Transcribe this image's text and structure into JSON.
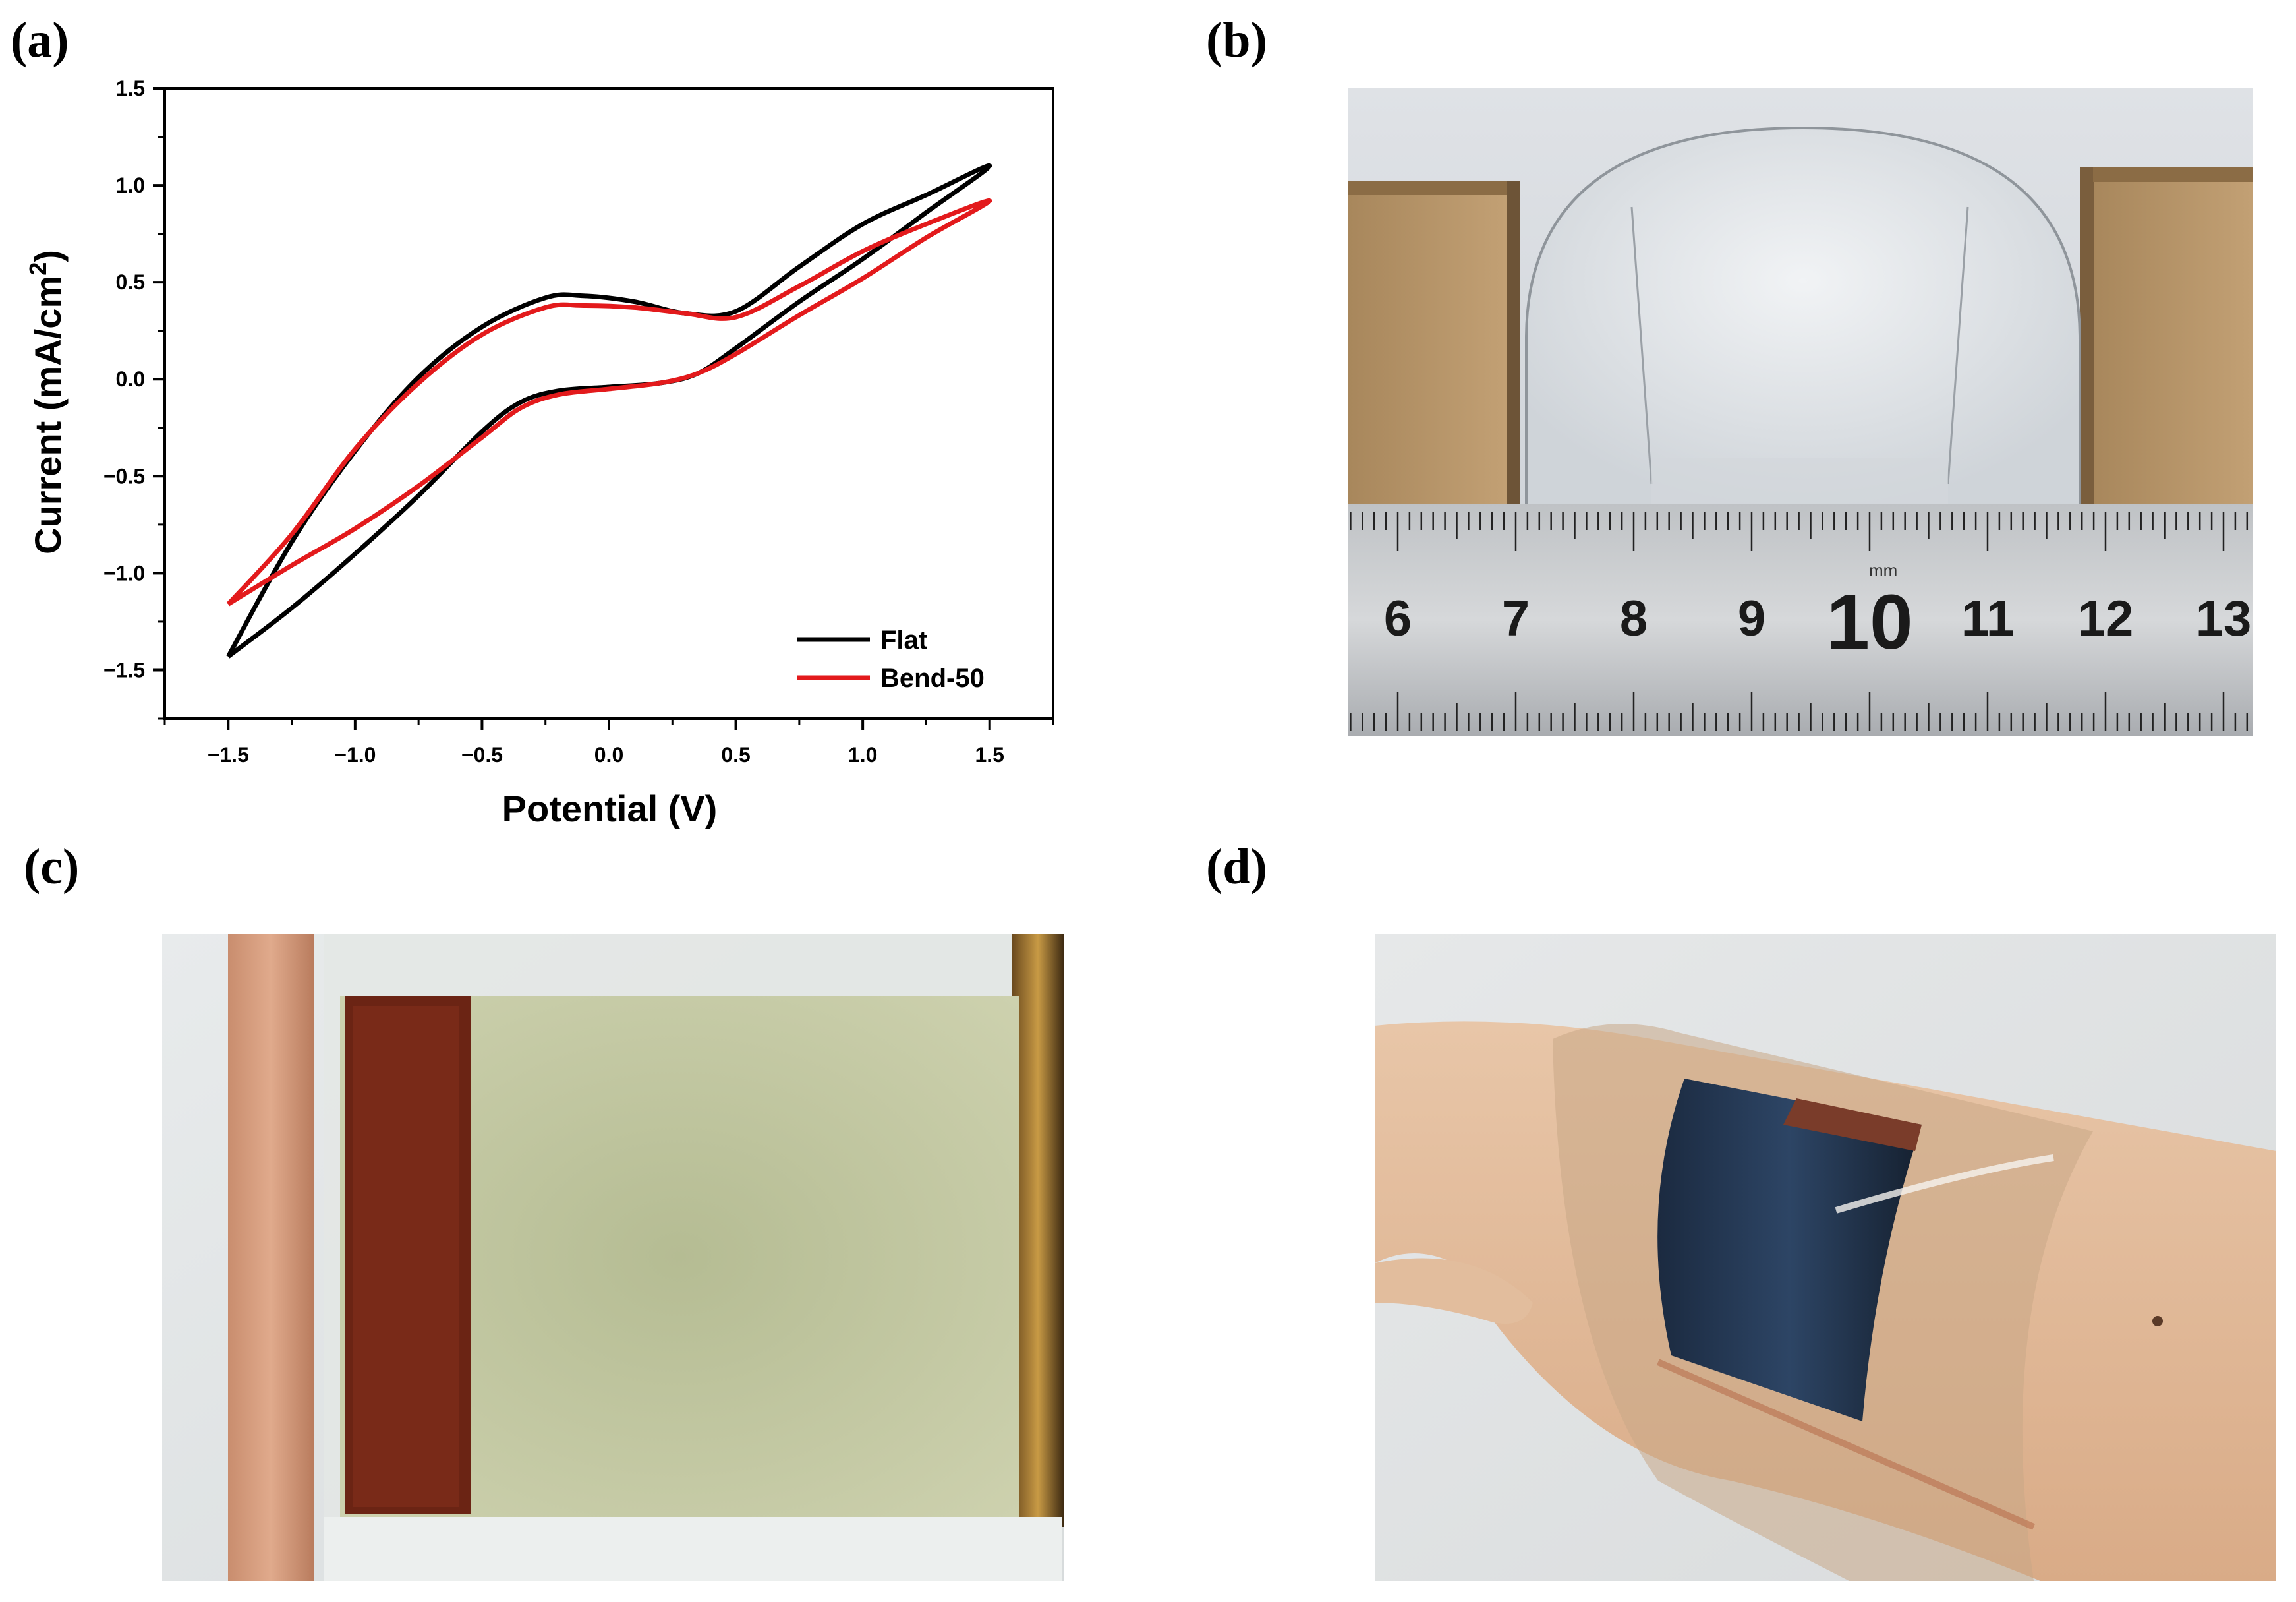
{
  "panels": {
    "a": "(a)",
    "b": "(b)",
    "c": "(c)",
    "d": "(d)"
  },
  "chart_data": {
    "type": "line",
    "title": "",
    "xlabel": "Potential (V)",
    "ylabel_main": "Current (mA/cm",
    "ylabel_sup": "2",
    "ylabel_close": ")",
    "xlim": [
      -1.75,
      1.75
    ],
    "ylim": [
      -1.75,
      1.5
    ],
    "xticks": [
      -1.5,
      -1.0,
      -0.5,
      0.0,
      0.5,
      1.0,
      1.5
    ],
    "xtick_labels": [
      "−1.5",
      "−1.0",
      "−0.5",
      "0.0",
      "0.5",
      "1.0",
      "1.5"
    ],
    "yticks": [
      -1.5,
      -1.0,
      -0.5,
      0.0,
      0.5,
      1.0,
      1.5
    ],
    "ytick_labels": [
      "−1.5",
      "−1.0",
      "−0.5",
      "0.0",
      "0.5",
      "1.0",
      "1.5"
    ],
    "grid": false,
    "legend_position": "bottom-right",
    "series": [
      {
        "name": "Flat",
        "color": "#000000",
        "x": [
          -1.5,
          -1.25,
          -1.0,
          -0.75,
          -0.5,
          -0.35,
          -0.2,
          0.0,
          0.2,
          0.35,
          0.5,
          0.75,
          1.0,
          1.25,
          1.5,
          1.25,
          1.0,
          0.75,
          0.5,
          0.3,
          0.1,
          -0.1,
          -0.25,
          -0.5,
          -0.75,
          -1.0,
          -1.25,
          -1.5
        ],
        "y": [
          -1.43,
          -1.18,
          -0.9,
          -0.6,
          -0.27,
          -0.12,
          -0.06,
          -0.04,
          -0.02,
          0.03,
          0.16,
          0.4,
          0.62,
          0.86,
          1.1,
          0.95,
          0.8,
          0.58,
          0.35,
          0.34,
          0.4,
          0.43,
          0.42,
          0.27,
          0.01,
          -0.37,
          -0.84,
          -1.43
        ]
      },
      {
        "name": "Bend-50",
        "color": "#e31a1c",
        "x": [
          -1.5,
          -1.25,
          -1.0,
          -0.75,
          -0.5,
          -0.35,
          -0.2,
          0.0,
          0.2,
          0.35,
          0.5,
          0.75,
          1.0,
          1.25,
          1.5,
          1.25,
          1.0,
          0.75,
          0.5,
          0.3,
          0.1,
          -0.1,
          -0.25,
          -0.5,
          -0.75,
          -1.0,
          -1.25,
          -1.5
        ],
        "y": [
          -1.16,
          -0.96,
          -0.77,
          -0.55,
          -0.3,
          -0.15,
          -0.08,
          -0.05,
          -0.02,
          0.03,
          0.13,
          0.33,
          0.52,
          0.73,
          0.92,
          0.8,
          0.66,
          0.48,
          0.32,
          0.34,
          0.37,
          0.38,
          0.37,
          0.23,
          -0.02,
          -0.36,
          -0.8,
          -1.16
        ]
      }
    ]
  },
  "photos": {
    "b": {
      "ruler_numbers": [
        "6",
        "7",
        "8",
        "9",
        "10",
        "11",
        "12",
        "13"
      ],
      "unit": "mm"
    }
  }
}
